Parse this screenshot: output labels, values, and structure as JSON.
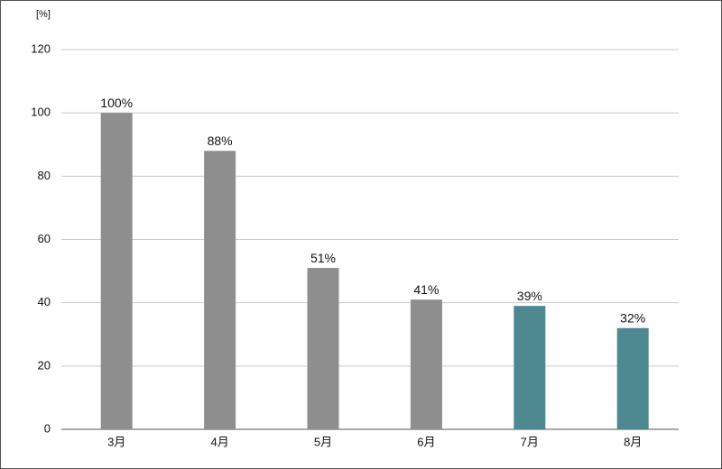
{
  "chart_data": {
    "type": "bar",
    "ylabel": "[%]",
    "categories": [
      "3月",
      "4月",
      "5月",
      "6月",
      "7月",
      "8月"
    ],
    "values": [
      100,
      88,
      51,
      41,
      39,
      32
    ],
    "value_labels": [
      "100%",
      "88%",
      "51%",
      "41%",
      "39%",
      "32%"
    ],
    "colors": [
      "#8e8e8e",
      "#8e8e8e",
      "#8e8e8e",
      "#8e8e8e",
      "#4e8891",
      "#4e8891"
    ],
    "ylim": [
      0,
      120
    ],
    "yticks": [
      0,
      20,
      40,
      60,
      80,
      100,
      120
    ],
    "grid": true
  }
}
